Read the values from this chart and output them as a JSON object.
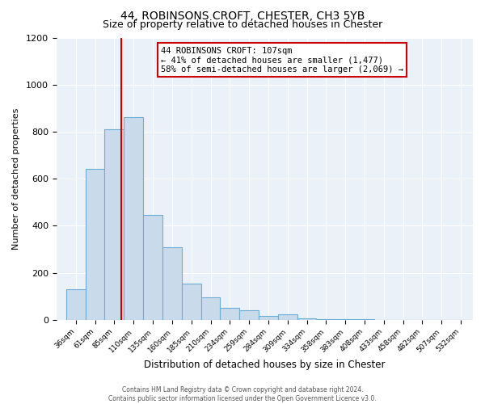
{
  "title": "44, ROBINSONS CROFT, CHESTER, CH3 5YB",
  "subtitle": "Size of property relative to detached houses in Chester",
  "xlabel": "Distribution of detached houses by size in Chester",
  "ylabel": "Number of detached properties",
  "bar_color": "#c9daea",
  "bar_edge_color": "#6aaed6",
  "background_color": "#eaf1f8",
  "grid_color": "#ffffff",
  "bin_labels": [
    "36sqm",
    "61sqm",
    "85sqm",
    "110sqm",
    "135sqm",
    "160sqm",
    "185sqm",
    "210sqm",
    "234sqm",
    "259sqm",
    "284sqm",
    "309sqm",
    "334sqm",
    "358sqm",
    "383sqm",
    "408sqm",
    "433sqm",
    "458sqm",
    "482sqm",
    "507sqm",
    "532sqm"
  ],
  "bin_left_edges": [
    36,
    61,
    85,
    110,
    135,
    160,
    185,
    210,
    234,
    259,
    284,
    309,
    334,
    358,
    383,
    408,
    433,
    458,
    482,
    507,
    532
  ],
  "bin_widths": [
    25,
    24,
    25,
    25,
    25,
    25,
    25,
    24,
    25,
    25,
    25,
    25,
    24,
    25,
    25,
    25,
    25,
    24,
    25,
    25,
    25
  ],
  "bar_heights": [
    130,
    640,
    810,
    860,
    445,
    310,
    155,
    95,
    52,
    42,
    18,
    22,
    5,
    2,
    1,
    1,
    0,
    0,
    0,
    0,
    0
  ],
  "property_line_x": 107,
  "annotation_text_line1": "44 ROBINSONS CROFT: 107sqm",
  "annotation_text_line2": "← 41% of detached houses are smaller (1,477)",
  "annotation_text_line3": "58% of semi-detached houses are larger (2,069) →",
  "annotation_box_color": "white",
  "annotation_box_edge_color": "#cc0000",
  "line_color": "#cc0000",
  "ylim": [
    0,
    1200
  ],
  "xlim_left": 23,
  "xlim_right": 560,
  "yticks": [
    0,
    200,
    400,
    600,
    800,
    1000,
    1200
  ],
  "title_fontsize": 10,
  "subtitle_fontsize": 9,
  "footer_line1": "Contains HM Land Registry data © Crown copyright and database right 2024.",
  "footer_line2": "Contains public sector information licensed under the Open Government Licence v3.0."
}
